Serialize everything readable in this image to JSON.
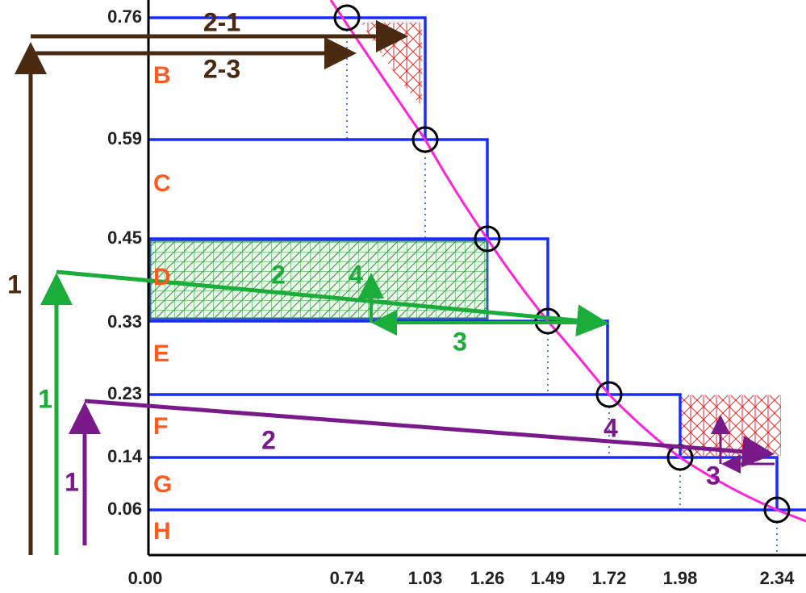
{
  "y_axis": {
    "ticks": [
      "0.76",
      "0.59",
      "0.45",
      "0.33",
      "0.23",
      "0.14",
      "0.06"
    ]
  },
  "x_axis": {
    "ticks": [
      "0.00",
      "0.74",
      "1.03",
      "1.26",
      "1.49",
      "1.72",
      "1.98",
      "2.34"
    ]
  },
  "regions": [
    "B",
    "C",
    "D",
    "E",
    "F",
    "G",
    "H"
  ],
  "brown_arrows": {
    "labels": [
      "1",
      "2-1",
      "2-3"
    ]
  },
  "green_arrows": {
    "labels": [
      "1",
      "2",
      "3",
      "4"
    ]
  },
  "purple_arrows": {
    "labels": [
      "1",
      "2",
      "3",
      "4"
    ]
  }
}
